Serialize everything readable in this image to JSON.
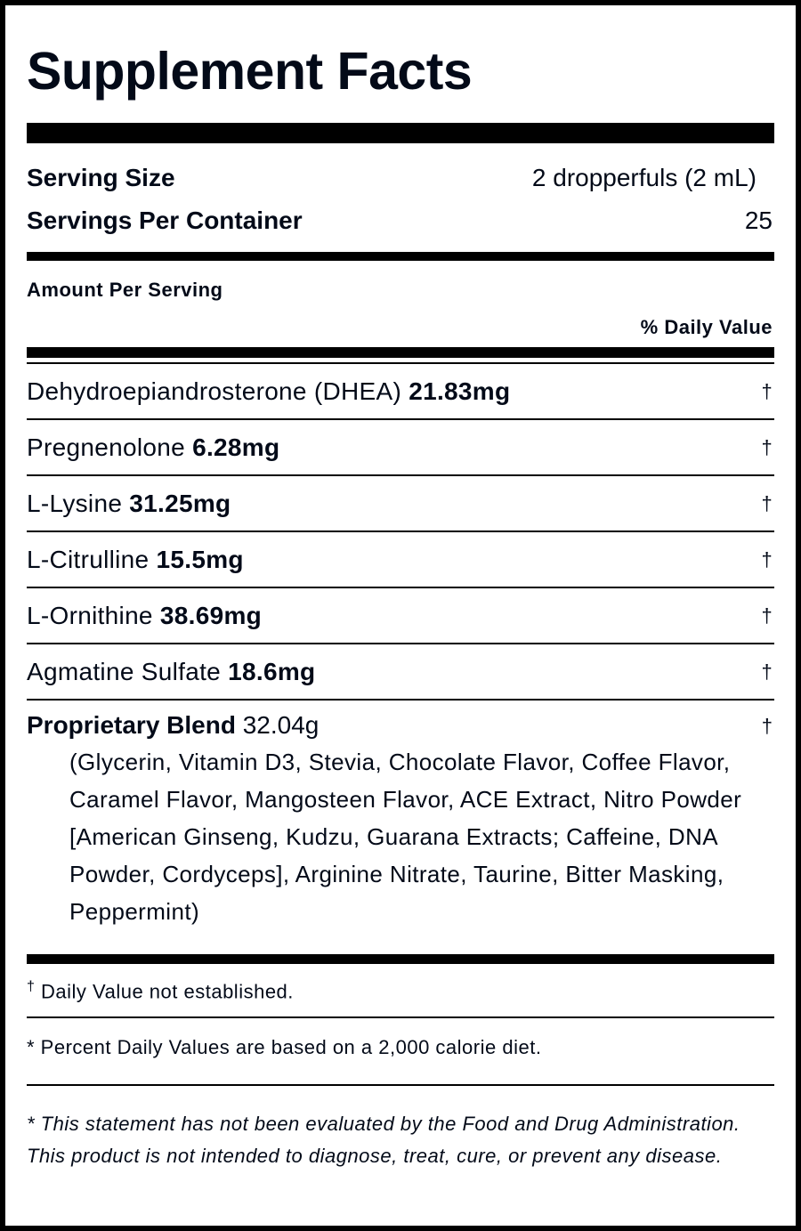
{
  "title": "Supplement Facts",
  "serving_size": {
    "label": "Serving Size",
    "value": "2 dropperfuls (2 mL)"
  },
  "servings_per_container": {
    "label": "Servings Per Container",
    "value": "25"
  },
  "amount_per_serving": "Amount Per Serving",
  "daily_value_header": "% Daily Value",
  "ingredients": [
    {
      "name": "Dehydroepiandrosterone (DHEA)",
      "amount": "21.83mg",
      "dv": "†"
    },
    {
      "name": "Pregnenolone",
      "amount": "6.28mg",
      "dv": "†"
    },
    {
      "name": "L-Lysine",
      "amount": "31.25mg",
      "dv": "†"
    },
    {
      "name": "L-Citrulline",
      "amount": "15.5mg",
      "dv": "†"
    },
    {
      "name": "L-Ornithine",
      "amount": "38.69mg",
      "dv": "†"
    },
    {
      "name": "Agmatine Sulfate",
      "amount": "18.6mg",
      "dv": "†"
    }
  ],
  "blend": {
    "name": "Proprietary Blend",
    "amount": "32.04g",
    "dv": "†",
    "contents": "(Glycerin, Vitamin D3, Stevia, Chocolate Flavor, Coffee Flavor, Caramel Flavor, Mangosteen Flavor, ACE Extract, Nitro Powder [American Ginseng, Kudzu, Guarana Extracts; Caffeine, DNA Powder, Cordyceps], Arginine Nitrate, Taurine, Bitter Masking, Peppermint)"
  },
  "footnotes": {
    "dagger_symbol": "†",
    "dagger_text": "Daily Value not established.",
    "percent": "* Percent Daily Values are based on a 2,000 calorie diet.",
    "fda": "* This statement has not been evaluated by the Food and Drug Administration. This product is not intended to diagnose, treat, cure, or prevent any disease."
  }
}
